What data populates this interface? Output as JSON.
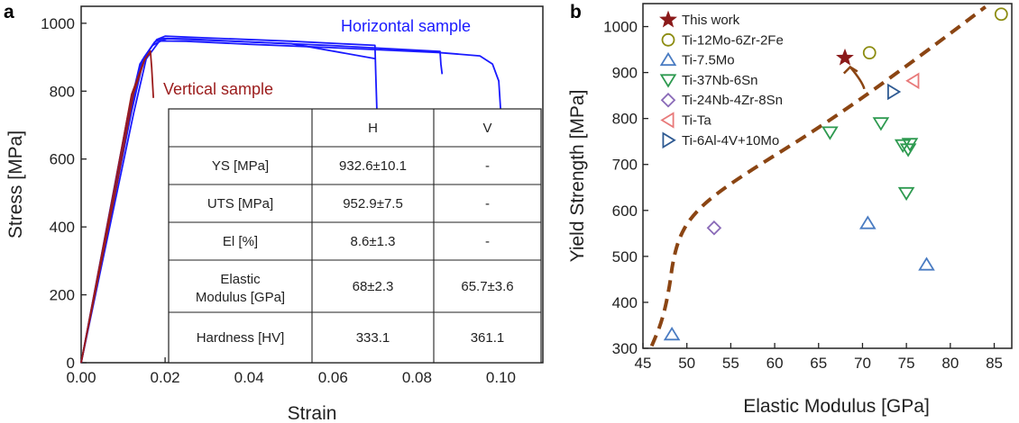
{
  "panel_a": {
    "label": "a",
    "annotation_horizontal": "Horizontal sample",
    "annotation_vertical": "Vertical sample",
    "table": {
      "header": [
        "",
        "H",
        "V"
      ],
      "rows": [
        [
          "YS [MPa]",
          "932.6±10.1",
          "-"
        ],
        [
          "UTS [MPa]",
          "952.9±7.5",
          "-"
        ],
        [
          "El [%]",
          "8.6±1.3",
          "-"
        ],
        [
          "Elastic|Modulus [GPa]",
          "68±2.3",
          "65.7±3.6"
        ],
        [
          "Hardness [HV]",
          "333.1",
          "361.1"
        ]
      ]
    }
  },
  "panel_b": {
    "label": "b"
  },
  "colors": {
    "horizontal": "#1a1aff",
    "vertical": "#9b1b1b",
    "trend": "#8b4513"
  },
  "chart_data": [
    {
      "type": "line",
      "xlabel": "Strain",
      "ylabel": "Stress [MPa]",
      "xlim": [
        0,
        0.11
      ],
      "ylim": [
        0,
        1050
      ],
      "xticks": [
        "0.00",
        "0.02",
        "0.04",
        "0.06",
        "0.08",
        "0.10"
      ],
      "yticks": [
        "0",
        "200",
        "400",
        "600",
        "800",
        "1000"
      ],
      "grid": false,
      "series": [
        {
          "name": "Horizontal sample",
          "color": "#1a1aff",
          "x": [
            0,
            0.011,
            0.014,
            0.017,
            0.019,
            0.025,
            0.04,
            0.06,
            0.085,
            0.095,
            0.098,
            0.0995,
            0.1
          ],
          "y": [
            0,
            720,
            880,
            935,
            948,
            947,
            938,
            928,
            914,
            904,
            880,
            830,
            730
          ]
        },
        {
          "name": "Horizontal sample",
          "color": "#1a1aff",
          "x": [
            0,
            0.0115,
            0.0145,
            0.0175,
            0.0195,
            0.025,
            0.04,
            0.06,
            0.0855,
            0.0857,
            0.086
          ],
          "y": [
            0,
            730,
            890,
            945,
            955,
            954,
            945,
            934,
            917,
            880,
            850
          ]
        },
        {
          "name": "Horizontal sample",
          "color": "#1a1aff",
          "x": [
            0,
            0.012,
            0.015,
            0.018,
            0.02,
            0.03,
            0.05,
            0.07,
            0.0702,
            0.0705
          ],
          "y": [
            0,
            740,
            900,
            952,
            962,
            957,
            947,
            935,
            850,
            730
          ]
        },
        {
          "name": "Horizontal sample",
          "color": "#1a1aff",
          "x": [
            0,
            0.0125,
            0.0155,
            0.0185,
            0.0205,
            0.03,
            0.05,
            0.07
          ],
          "y": [
            0,
            735,
            895,
            945,
            955,
            950,
            940,
            896
          ]
        },
        {
          "name": "Vertical sample",
          "color": "#9b1b1b",
          "x": [
            0,
            0.008,
            0.012,
            0.015,
            0.0165,
            0.0168,
            0.0172
          ],
          "y": [
            0,
            520,
            790,
            890,
            918,
            870,
            780
          ]
        },
        {
          "name": "Vertical sample",
          "color": "#9b1b1b",
          "x": [
            0,
            0.0085,
            0.0125,
            0.0152,
            0.0163
          ],
          "y": [
            0,
            525,
            795,
            895,
            912
          ]
        }
      ]
    },
    {
      "type": "scatter",
      "xlabel": "Elastic Modulus [GPa]",
      "ylabel": "Yield Strength [MPa]",
      "xlim": [
        45,
        87
      ],
      "ylim": [
        300,
        1050
      ],
      "xticks": [
        "45",
        "50",
        "55",
        "60",
        "65",
        "70",
        "75",
        "80",
        "85"
      ],
      "yticks": [
        "300",
        "400",
        "500",
        "600",
        "700",
        "800",
        "900",
        "1000"
      ],
      "grid": false,
      "legend_position": "top-left",
      "series": [
        {
          "name": "This work",
          "marker": "star",
          "color": "#8b1a1a",
          "x": [
            68
          ],
          "y": [
            932
          ]
        },
        {
          "name": "Ti-12Mo-6Zr-2Fe",
          "marker": "circle",
          "color": "#8c8c10",
          "x": [
            70.8,
            85.8
          ],
          "y": [
            943,
            1027
          ]
        },
        {
          "name": "Ti-7.5Mo",
          "marker": "triangle-up",
          "color": "#4a7cc2",
          "x": [
            48.3,
            70.6,
            77.3
          ],
          "y": [
            330,
            572,
            482
          ]
        },
        {
          "name": "Ti-37Nb-6Sn",
          "marker": "triangle-down",
          "color": "#2e9a50",
          "x": [
            66.3,
            72.1,
            74.6,
            75.0,
            75.2,
            75.4
          ],
          "y": [
            770,
            790,
            742,
            638,
            733,
            745
          ]
        },
        {
          "name": "Ti-24Nb-4Zr-8Sn",
          "marker": "diamond",
          "color": "#8a6ab8",
          "x": [
            53.1
          ],
          "y": [
            562
          ]
        },
        {
          "name": "Ti-Ta",
          "marker": "triangle-left",
          "color": "#e87a7a",
          "x": [
            75.8
          ],
          "y": [
            882
          ]
        },
        {
          "name": "Ti-6Al-4V+10Mo",
          "marker": "triangle-right",
          "color": "#2e5a92",
          "x": [
            73.5
          ],
          "y": [
            858
          ]
        }
      ],
      "trend_line": {
        "style": "dashed",
        "color": "#8b4513",
        "x": [
          46.0,
          47.2,
          48.0,
          48.4,
          49.2,
          50.6,
          53.0,
          57.5,
          63.0,
          68.5,
          74.0,
          80.0,
          84.0
        ],
        "y": [
          305,
          360,
          430,
          490,
          545,
          588,
          632,
          690,
          755,
          825,
          900,
          985,
          1043
        ]
      },
      "trend_arrow": {
        "from": [
          70.2,
          880
        ],
        "to": [
          68.6,
          912
        ]
      }
    }
  ]
}
